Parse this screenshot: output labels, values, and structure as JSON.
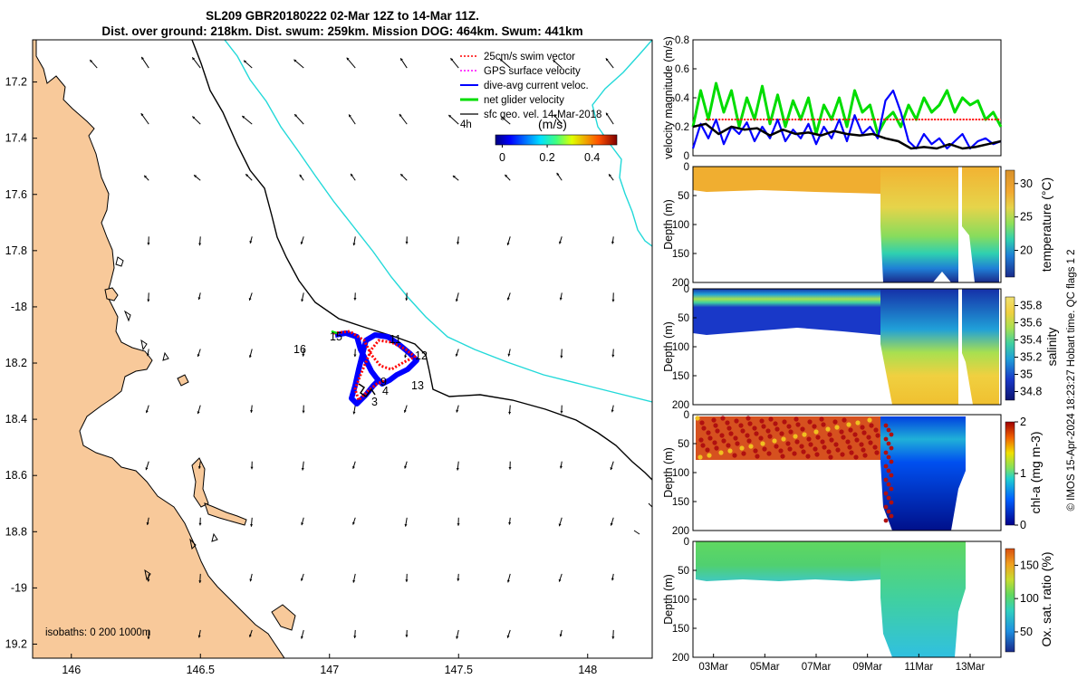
{
  "title_line1": "SL209 GBR20180222 02-Mar 12Z to 14-Mar 11Z.",
  "title_line2": "Dist. over ground: 218km. Dist. swum: 259km. Mission DOG: 464km. Swum: 441km",
  "copyright": "© IMOS 15-Apr-2024 18:23:27 Hobart time. QC flags 1  2",
  "colors": {
    "land": "#f8c99a",
    "isobath_coast": "#000000",
    "isobath_200": "#000000",
    "isobath_1000": "#22d9d9",
    "swim": "#ff0000",
    "gps": "#ff00ff",
    "dive_avg": "#0000ff",
    "net_glider": "#00dd00",
    "geo_vel": "#000000"
  },
  "chart_data": [
    {
      "type": "map",
      "name": "glider track map",
      "xlim": [
        145.85,
        148.25
      ],
      "ylim": [
        -19.25,
        -17.05
      ],
      "x_ticks": [
        146,
        146.5,
        147,
        147.5,
        148
      ],
      "x_tick_labels": [
        "146",
        "146.5",
        "147",
        "147.5",
        "148"
      ],
      "y_ticks": [
        -17.2,
        -17.4,
        -17.6,
        -17.8,
        -18,
        -18.2,
        -18.4,
        -18.6,
        -18.8,
        -19,
        -19.2
      ],
      "y_tick_labels": [
        "17.2",
        "17.4",
        "17.6",
        "17.8",
        "-18",
        "18.2",
        "18.4",
        "18.6",
        "18.8",
        "-19",
        "19.2"
      ],
      "isobaths_label": "isobaths: 0   200  1000m",
      "legend": [
        {
          "label": "25cm/s swim vector",
          "color": "#ff0000",
          "style": "dotted-arrow"
        },
        {
          "label": "GPS surface velocity",
          "color": "#ff00ff",
          "style": "dotted-arrow"
        },
        {
          "label": "dive-avg current veloc.",
          "color": "#0000ff",
          "style": "arrow"
        },
        {
          "label": "net glider velocity",
          "color": "#00dd00",
          "style": "arrow"
        },
        {
          "label": "sfc geo. vel. 14-Mar-2018",
          "color": "#000000",
          "style": "arrow"
        }
      ],
      "colorbar": {
        "title": "(m/s)",
        "left_label": "4h",
        "ticks": [
          0,
          0.2,
          0.4
        ],
        "tick_labels": [
          "0",
          "0.2",
          "0.4"
        ],
        "range": [
          -0.03,
          0.51
        ]
      },
      "day_labels": [
        {
          "text": "16",
          "lon": 146.91,
          "lat": -18.14
        },
        {
          "text": "15",
          "lon": 146.97,
          "lat": -18.09
        },
        {
          "text": "11",
          "lon": 147.19,
          "lat": -18.09
        },
        {
          "text": "12",
          "lon": 147.34,
          "lat": -18.18
        },
        {
          "text": "13",
          "lon": 147.33,
          "lat": -18.32
        },
        {
          "text": "9",
          "lon": 147.16,
          "lat": -18.3
        },
        {
          "text": "4",
          "lon": 147.17,
          "lat": -18.35
        },
        {
          "text": "3",
          "lon": 147.11,
          "lat": -18.41
        }
      ],
      "geostrophic_grid": {
        "lons": [
          146.1,
          146.3,
          146.5,
          146.7,
          146.9,
          147.1,
          147.3,
          147.5,
          147.7,
          147.9,
          148.1
        ],
        "lats": [
          -17.15,
          -17.35,
          -17.55,
          -17.75,
          -17.95,
          -18.15,
          -18.35,
          -18.55,
          -18.75,
          -18.95,
          -19.15
        ]
      }
    },
    {
      "type": "line",
      "name": "velocity magnitude",
      "ylabel": "velocity magnitude (m/s)",
      "ylim": [
        0,
        0.8
      ],
      "y_ticks": [
        0,
        0.2,
        0.4,
        0.6,
        0.8
      ],
      "y_tick_labels": [
        "0",
        "0.2",
        "0.4",
        "0.6",
        "0.8"
      ],
      "xlim": [
        2.5,
        14.5
      ],
      "series": [
        {
          "name": "net glider velocity",
          "color": "#00dd00",
          "x": [
            2.5,
            2.8,
            3.1,
            3.4,
            3.7,
            4.0,
            4.3,
            4.6,
            4.9,
            5.2,
            5.5,
            5.8,
            6.1,
            6.4,
            6.7,
            7.0,
            7.3,
            7.6,
            7.9,
            8.2,
            8.5,
            8.8,
            9.1,
            9.4,
            9.7,
            10.0,
            10.3,
            10.6,
            10.9,
            11.2,
            11.5,
            11.8,
            12.1,
            12.4,
            12.7,
            13.0,
            13.3,
            13.6,
            13.9,
            14.2,
            14.5
          ],
          "values": [
            0.2,
            0.45,
            0.25,
            0.5,
            0.3,
            0.45,
            0.2,
            0.4,
            0.25,
            0.48,
            0.22,
            0.42,
            0.2,
            0.38,
            0.25,
            0.4,
            0.15,
            0.35,
            0.25,
            0.4,
            0.2,
            0.45,
            0.3,
            0.35,
            0.15,
            0.25,
            0.3,
            0.2,
            0.35,
            0.25,
            0.4,
            0.3,
            0.35,
            0.45,
            0.3,
            0.4,
            0.35,
            0.38,
            0.25,
            0.3,
            0.2
          ]
        },
        {
          "name": "25cm/s swim vector",
          "color": "#ff0000",
          "x": [
            3.0,
            14.5
          ],
          "values": [
            0.25,
            0.25
          ]
        },
        {
          "name": "dive-avg current veloc.",
          "color": "#0000ff",
          "x": [
            2.5,
            2.8,
            3.1,
            3.4,
            3.7,
            4.0,
            4.3,
            4.6,
            4.9,
            5.2,
            5.5,
            5.8,
            6.1,
            6.4,
            6.7,
            7.0,
            7.3,
            7.6,
            7.9,
            8.2,
            8.5,
            8.8,
            9.1,
            9.4,
            9.7,
            10.0,
            10.3,
            10.6,
            10.9,
            11.2,
            11.5,
            11.8,
            12.1,
            12.4,
            12.7,
            13.0,
            13.3,
            13.6,
            13.9,
            14.2,
            14.5
          ],
          "values": [
            0.05,
            0.22,
            0.12,
            0.25,
            0.08,
            0.2,
            0.15,
            0.23,
            0.1,
            0.2,
            0.12,
            0.25,
            0.1,
            0.18,
            0.12,
            0.22,
            0.08,
            0.2,
            0.12,
            0.25,
            0.1,
            0.28,
            0.15,
            0.2,
            0.12,
            0.38,
            0.45,
            0.3,
            0.1,
            0.05,
            0.15,
            0.08,
            0.12,
            0.05,
            0.1,
            0.15,
            0.05,
            0.1,
            0.12,
            0.08,
            0.1
          ]
        },
        {
          "name": "sfc geo. vel.",
          "color": "#000000",
          "x": [
            2.5,
            3.0,
            3.5,
            4.0,
            4.5,
            5.0,
            5.5,
            6.0,
            6.5,
            7.0,
            7.5,
            8.0,
            8.5,
            9.0,
            9.5,
            10.0,
            10.5,
            11.0,
            11.5,
            12.0,
            12.5,
            13.0,
            13.5,
            14.0,
            14.5
          ],
          "values": [
            0.2,
            0.22,
            0.15,
            0.2,
            0.18,
            0.19,
            0.14,
            0.18,
            0.15,
            0.16,
            0.14,
            0.17,
            0.15,
            0.14,
            0.15,
            0.12,
            0.1,
            0.05,
            0.06,
            0.05,
            0.08,
            0.05,
            0.06,
            0.08,
            0.1
          ]
        }
      ]
    },
    {
      "type": "heatmap",
      "name": "temperature section",
      "ylabel": "Depth (m)",
      "colorbar_label": "temperature (°C)",
      "colorbar_range": [
        16,
        32
      ],
      "colorbar_ticks": [
        20,
        25,
        30
      ],
      "y_ticks": [
        0,
        50,
        100,
        150,
        200
      ],
      "ylim": [
        200,
        0
      ]
    },
    {
      "type": "heatmap",
      "name": "salinity section",
      "ylabel": "Depth (m)",
      "colorbar_label": "salinity",
      "colorbar_range": [
        34.7,
        35.9
      ],
      "colorbar_ticks": [
        34.8,
        35,
        35.2,
        35.4,
        35.6,
        35.8
      ],
      "colorbar_tick_labels": [
        "34.8",
        "35",
        "35.2",
        "35.4",
        "35.6",
        "35.8"
      ],
      "y_ticks": [
        0,
        50,
        100,
        150,
        200
      ],
      "ylim": [
        200,
        0
      ]
    },
    {
      "type": "heatmap",
      "name": "chlorophyll section",
      "ylabel": "Depth (m)",
      "colorbar_label": "chl-a  (mg m-3)",
      "colorbar_range": [
        0,
        2
      ],
      "colorbar_ticks": [
        0,
        1,
        2
      ],
      "y_ticks": [
        0,
        50,
        100,
        150,
        200
      ],
      "ylim": [
        200,
        0
      ]
    },
    {
      "type": "heatmap",
      "name": "oxygen section",
      "ylabel": "Depth (m)",
      "colorbar_label": "Ox. sat. ratio (%)",
      "colorbar_range": [
        20,
        175
      ],
      "colorbar_ticks": [
        50,
        100,
        150
      ],
      "y_ticks": [
        0,
        50,
        100,
        150,
        200
      ],
      "ylim": [
        200,
        0
      ],
      "x_ticks": [
        3,
        5,
        7,
        9,
        11,
        13
      ],
      "x_tick_labels": [
        "03Mar",
        "05Mar",
        "07Mar",
        "09Mar",
        "11Mar",
        "13Mar"
      ]
    }
  ]
}
